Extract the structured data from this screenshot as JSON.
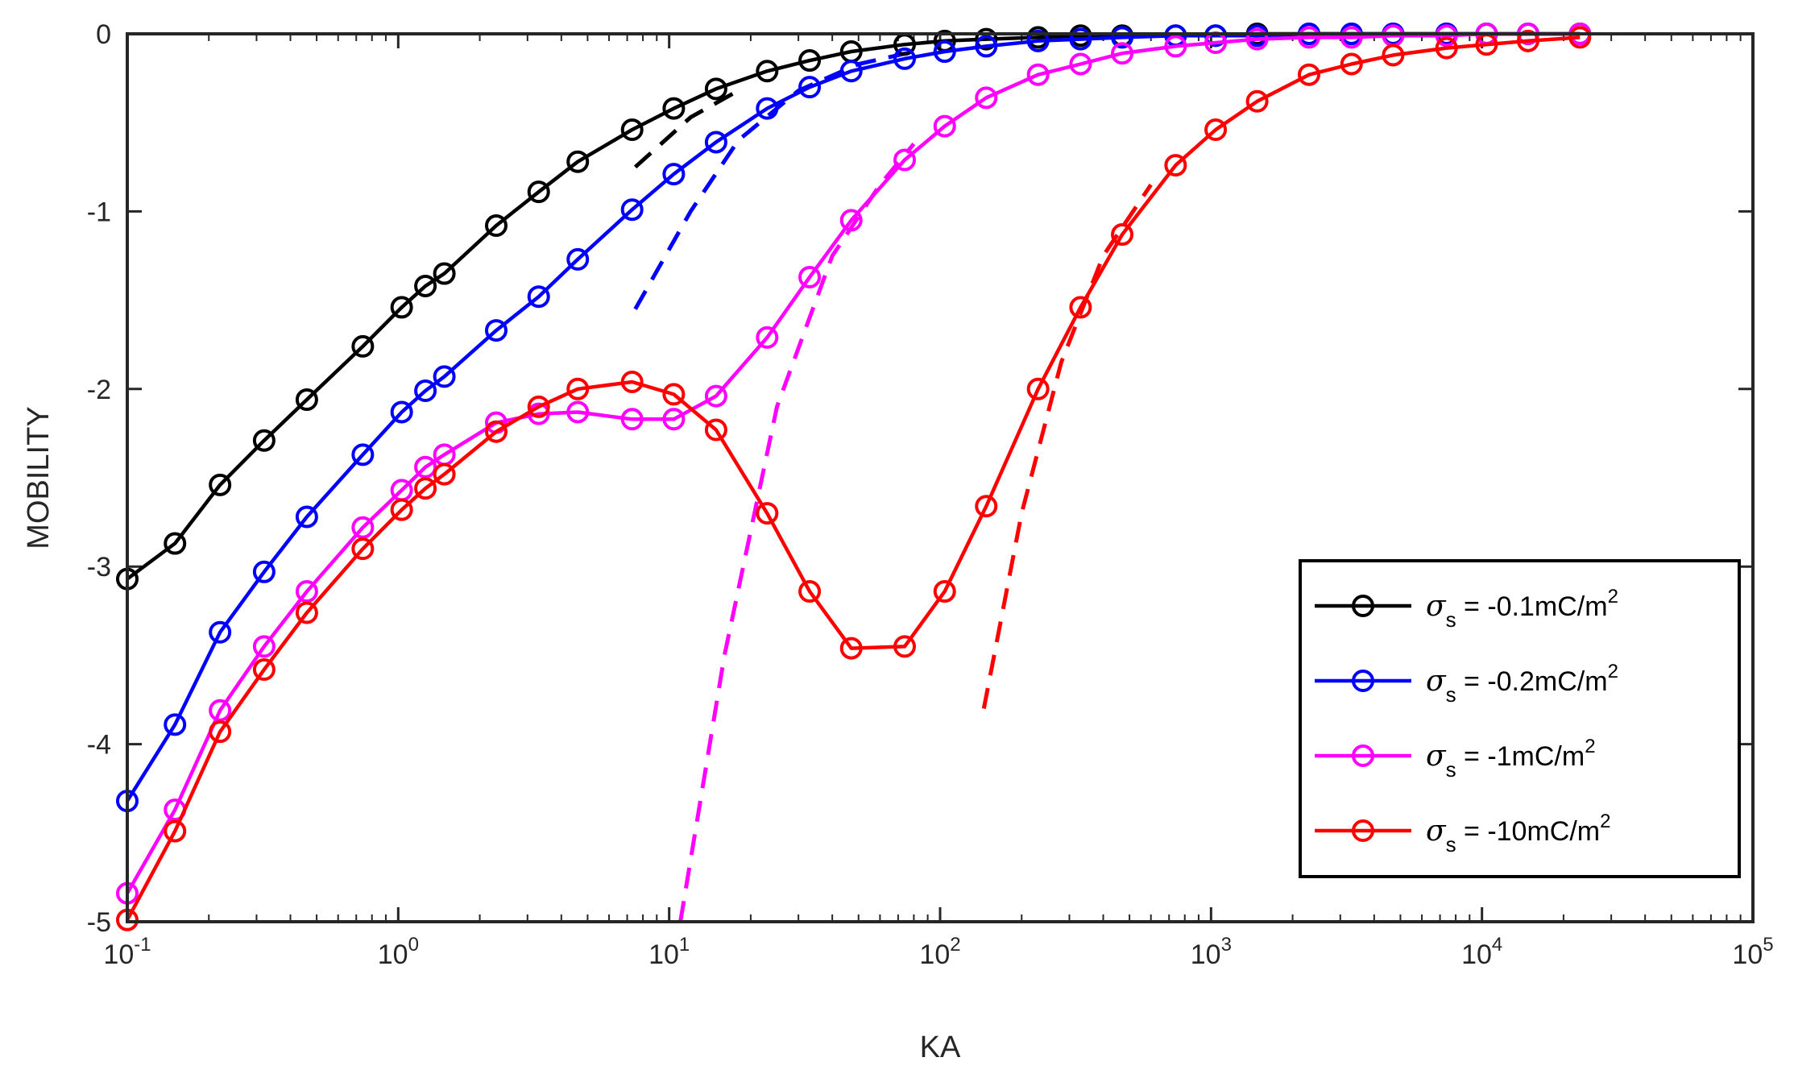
{
  "chart_data": {
    "type": "line",
    "title": "",
    "xlabel": "KA",
    "ylabel": "MOBILITY",
    "xscale": "log",
    "xlim": [
      0.1,
      100000
    ],
    "ylim": [
      -5,
      0
    ],
    "x_ticks": [
      {
        "value": 0.1,
        "base": "10",
        "exp": "-1"
      },
      {
        "value": 1,
        "base": "10",
        "exp": "0"
      },
      {
        "value": 10,
        "base": "10",
        "exp": "1"
      },
      {
        "value": 100,
        "base": "10",
        "exp": "2"
      },
      {
        "value": 1000,
        "base": "10",
        "exp": "3"
      },
      {
        "value": 10000,
        "base": "10",
        "exp": "4"
      },
      {
        "value": 100000,
        "base": "10",
        "exp": "5"
      }
    ],
    "y_ticks": [
      {
        "value": 0,
        "label": "0"
      },
      {
        "value": -1,
        "label": "-1"
      },
      {
        "value": -2,
        "label": "-2"
      },
      {
        "value": -3,
        "label": "-3"
      },
      {
        "value": -4,
        "label": "-4"
      },
      {
        "value": -5,
        "label": "-5"
      }
    ],
    "grid": false,
    "legend_position": "bottom-right",
    "series": [
      {
        "name": "σs = -0.1mC/m2",
        "legend": {
          "symbol": "σ",
          "sub": "s",
          "text": " = -0.1mC/m",
          "sup": "2"
        },
        "color": "#000000",
        "x": [
          0.1,
          0.15,
          0.22,
          0.32,
          0.46,
          0.74,
          1.03,
          1.26,
          1.48,
          2.3,
          3.3,
          4.6,
          7.3,
          10.4,
          14.9,
          23,
          33,
          47,
          74,
          104,
          148,
          230,
          330,
          470,
          740,
          1040,
          1480,
          2300,
          3300,
          4700,
          7400,
          10400,
          14800,
          23000
        ],
        "y": [
          -3.07,
          -2.87,
          -2.54,
          -2.29,
          -2.06,
          -1.76,
          -1.54,
          -1.42,
          -1.35,
          -1.08,
          -0.89,
          -0.72,
          -0.54,
          -0.42,
          -0.31,
          -0.21,
          -0.15,
          -0.1,
          -0.06,
          -0.04,
          -0.03,
          -0.02,
          -0.01,
          -0.01,
          -0.01,
          -0.01,
          0,
          0,
          0,
          0,
          0,
          0,
          0,
          0
        ]
      },
      {
        "name": "σs = -0.2mC/m2",
        "legend": {
          "symbol": "σ",
          "sub": "s",
          "text": " = -0.2mC/m",
          "sup": "2"
        },
        "color": "#0000ff",
        "x": [
          0.1,
          0.15,
          0.22,
          0.32,
          0.46,
          0.74,
          1.03,
          1.26,
          1.48,
          2.3,
          3.3,
          4.6,
          7.3,
          10.4,
          14.9,
          23,
          33,
          47,
          74,
          104,
          148,
          230,
          330,
          470,
          740,
          1040,
          1480,
          2300,
          3300,
          4700,
          7400,
          10400,
          14800,
          23000
        ],
        "y": [
          -4.32,
          -3.89,
          -3.37,
          -3.03,
          -2.72,
          -2.37,
          -2.13,
          -2.01,
          -1.93,
          -1.67,
          -1.48,
          -1.27,
          -0.99,
          -0.79,
          -0.61,
          -0.42,
          -0.3,
          -0.21,
          -0.14,
          -0.1,
          -0.07,
          -0.04,
          -0.03,
          -0.02,
          -0.01,
          -0.01,
          -0.01,
          0,
          0,
          0,
          0,
          0,
          0,
          0
        ]
      },
      {
        "name": "σs = -1mC/m2",
        "legend": {
          "symbol": "σ",
          "sub": "s",
          "text": " = -1mC/m",
          "sup": "2"
        },
        "color": "#ff00ff",
        "x": [
          0.1,
          0.15,
          0.22,
          0.32,
          0.46,
          0.74,
          1.03,
          1.26,
          1.48,
          2.3,
          3.3,
          4.6,
          7.3,
          10.4,
          14.9,
          23,
          33,
          47,
          74,
          104,
          148,
          230,
          330,
          470,
          740,
          1040,
          1480,
          2300,
          3300,
          4700,
          7400,
          10400,
          14800,
          23000
        ],
        "y": [
          -4.84,
          -4.37,
          -3.81,
          -3.45,
          -3.14,
          -2.78,
          -2.57,
          -2.44,
          -2.37,
          -2.19,
          -2.14,
          -2.13,
          -2.17,
          -2.17,
          -2.04,
          -1.71,
          -1.37,
          -1.05,
          -0.71,
          -0.52,
          -0.36,
          -0.23,
          -0.17,
          -0.11,
          -0.07,
          -0.05,
          -0.03,
          -0.02,
          -0.02,
          -0.01,
          -0.01,
          0,
          0,
          0
        ]
      },
      {
        "name": "σs = -10mC/m2",
        "legend": {
          "symbol": "σ",
          "sub": "s",
          "text": " = -10mC/m",
          "sup": "2"
        },
        "color": "#ff0000",
        "x": [
          0.1,
          0.15,
          0.22,
          0.32,
          0.46,
          0.74,
          1.03,
          1.26,
          1.48,
          2.3,
          3.3,
          4.6,
          7.3,
          10.4,
          14.9,
          23,
          33,
          47,
          74,
          104,
          148,
          230,
          330,
          470,
          740,
          1040,
          1480,
          2300,
          3300,
          4700,
          7400,
          10400,
          14800,
          23000
        ],
        "y": [
          -4.99,
          -4.49,
          -3.93,
          -3.58,
          -3.26,
          -2.9,
          -2.68,
          -2.56,
          -2.48,
          -2.24,
          -2.1,
          -2.0,
          -1.96,
          -2.03,
          -2.23,
          -2.7,
          -3.14,
          -3.46,
          -3.45,
          -3.14,
          -2.66,
          -2.0,
          -1.54,
          -1.13,
          -0.74,
          -0.54,
          -0.38,
          -0.23,
          -0.17,
          -0.12,
          -0.08,
          -0.06,
          -0.04,
          -0.02
        ]
      }
    ],
    "asymptotes": [
      {
        "series": "σs = -0.1mC/m2",
        "color": "#000000",
        "x": [
          7.5,
          12,
          18
        ],
        "y": [
          -0.75,
          -0.47,
          -0.32
        ]
      },
      {
        "series": "σs = -0.2mC/m2",
        "color": "#0000ff",
        "x": [
          7.5,
          12,
          18,
          30,
          50,
          80
        ],
        "y": [
          -1.55,
          -1.0,
          -0.6,
          -0.32,
          -0.17,
          -0.1
        ]
      },
      {
        "series": "σs = -1mC/m2",
        "color": "#ff00ff",
        "x": [
          11,
          16,
          25,
          40,
          60,
          80
        ],
        "y": [
          -5.0,
          -3.5,
          -2.1,
          -1.25,
          -0.85,
          -0.62
        ]
      },
      {
        "series": "σs = -10mC/m2",
        "color": "#ff0000",
        "x": [
          145,
          200,
          280,
          400,
          600
        ],
        "y": [
          -3.8,
          -2.7,
          -1.85,
          -1.25,
          -0.85
        ]
      }
    ]
  }
}
